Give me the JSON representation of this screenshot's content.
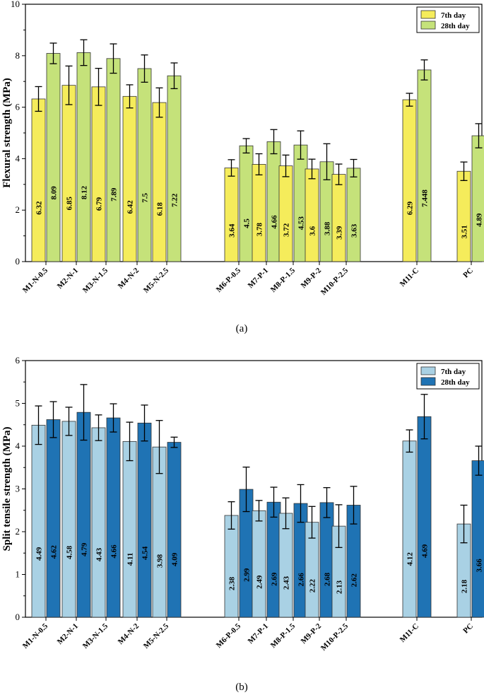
{
  "chart_data": [
    {
      "type": "bar",
      "caption": "(a)",
      "ylabel": "Flexural strength (MPa)",
      "ylim": [
        0,
        10
      ],
      "yticks": [
        0,
        2,
        4,
        6,
        8,
        10
      ],
      "colors": [
        "#f5ec5b",
        "#c5e27a"
      ],
      "categories": [
        "M1-N-0.5",
        "M2-N-1",
        "M3-N-1.5",
        "M4-N-2",
        "M5-N-2.5",
        "M6-P-0.5",
        "M7-P-1",
        "M8-P-1.5",
        "M9-P-2",
        "M10-P-2.5",
        "M11-C",
        "PC"
      ],
      "series": [
        {
          "name": "7th day",
          "values": [
            6.32,
            6.85,
            6.79,
            6.42,
            6.18,
            3.64,
            3.78,
            3.72,
            3.6,
            3.39,
            6.29,
            3.51
          ],
          "labels": [
            "6.32",
            "6.85",
            "6.79",
            "6.42",
            "6.18",
            "3.64",
            "3.78",
            "3.72",
            "3.6",
            "3.39",
            "6.29",
            "3.51"
          ],
          "errors": [
            0.48,
            0.75,
            0.72,
            0.45,
            0.57,
            0.32,
            0.41,
            0.42,
            0.38,
            0.4,
            0.25,
            0.36
          ]
        },
        {
          "name": "28th day",
          "values": [
            8.09,
            8.12,
            7.89,
            7.5,
            7.22,
            4.5,
            4.66,
            4.53,
            3.88,
            3.63,
            7.448,
            4.89
          ],
          "labels": [
            "8.09",
            "8.12",
            "7.89",
            "7.5",
            "7.22",
            "4.5",
            "4.66",
            "4.53",
            "3.88",
            "3.63",
            "7.448",
            "4.89"
          ],
          "errors": [
            0.4,
            0.5,
            0.57,
            0.53,
            0.5,
            0.28,
            0.47,
            0.55,
            0.7,
            0.34,
            0.39,
            0.47
          ]
        }
      ]
    },
    {
      "type": "bar",
      "caption": "(b)",
      "ylabel": "Split tensile strength (MPa)",
      "ylim": [
        0,
        6
      ],
      "yticks": [
        0,
        1,
        2,
        3,
        4,
        5,
        6
      ],
      "colors": [
        "#a9d1e4",
        "#1f73b4"
      ],
      "categories": [
        "M1-N-0.5",
        "M2-N-1",
        "M3-N-1.5",
        "M4-N-2",
        "M5-N-2.5",
        "M6-P-0.5",
        "M7-P-1",
        "M8-P-1.5",
        "M9-P-2",
        "M10-P-2.5",
        "M11-C",
        "PC"
      ],
      "series": [
        {
          "name": "7th day",
          "values": [
            4.49,
            4.58,
            4.43,
            4.11,
            3.98,
            2.38,
            2.49,
            2.43,
            2.22,
            2.13,
            4.12,
            2.18
          ],
          "labels": [
            "4.49",
            "4.58",
            "4.43",
            "4.11",
            "3.98",
            "2.38",
            "2.49",
            "2.43",
            "2.22",
            "2.13",
            "4.12",
            "2.18"
          ],
          "errors": [
            0.45,
            0.33,
            0.3,
            0.45,
            0.62,
            0.32,
            0.24,
            0.36,
            0.37,
            0.5,
            0.26,
            0.44
          ]
        },
        {
          "name": "28th day",
          "values": [
            4.62,
            4.79,
            4.66,
            4.54,
            4.09,
            2.99,
            2.69,
            2.66,
            2.68,
            2.62,
            4.69,
            3.66
          ],
          "labels": [
            "4.62",
            "4.79",
            "4.66",
            "4.54",
            "4.09",
            "2.99",
            "2.69",
            "2.66",
            "2.68",
            "2.62",
            "4.69",
            "3.66"
          ],
          "errors": [
            0.42,
            0.65,
            0.33,
            0.42,
            0.12,
            0.52,
            0.35,
            0.44,
            0.35,
            0.44,
            0.52,
            0.34
          ]
        }
      ]
    }
  ]
}
